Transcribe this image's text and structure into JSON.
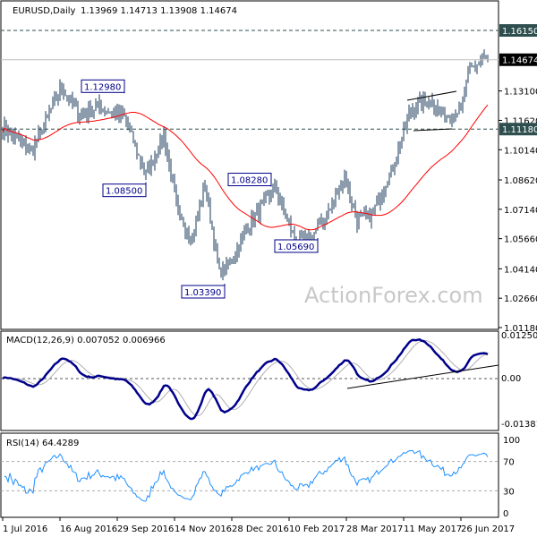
{
  "chart_data": {
    "type": "line",
    "title": "EURUSD,Daily",
    "ohlc_header": "1.13969 1.14713 1.13908 1.14674",
    "price_ticks": [
      "1.13100",
      "1.11620",
      "1.10140",
      "1.08620",
      "1.07140",
      "1.05660",
      "1.04140",
      "1.02660",
      "1.01180"
    ],
    "price_range": [
      1.0118,
      1.1615
    ],
    "current_price": "1.14674",
    "levels": [
      {
        "label": "1.16150",
        "value": 1.1615
      },
      {
        "label": "1.11180",
        "value": 1.1118
      }
    ],
    "annotations": [
      {
        "label": "1.12980",
        "bar": 68,
        "value": 1.1298
      },
      {
        "label": "1.08500",
        "bar": 80,
        "value": 1.085
      },
      {
        "label": "1.08280",
        "bar": 150,
        "value": 1.0828
      },
      {
        "label": "1.03390",
        "bar": 124,
        "value": 1.0339
      },
      {
        "label": "1.05690",
        "bar": 176,
        "value": 1.0569
      }
    ],
    "x_labels": [
      "1 Jul 2016",
      "16 Aug 2016",
      "29 Sep 2016",
      "14 Nov 2016",
      "28 Dec 2016",
      "10 Feb 2017",
      "28 Mar 2017",
      "11 May 2017",
      "26 Jun 2017"
    ],
    "bars_per_label": 32,
    "price_waypoints": [
      [
        0,
        1.113
      ],
      [
        16,
        1.1
      ],
      [
        33,
        1.133
      ],
      [
        43,
        1.118
      ],
      [
        53,
        1.123
      ],
      [
        68,
        1.118
      ],
      [
        80,
        1.088
      ],
      [
        90,
        1.109
      ],
      [
        98,
        1.068
      ],
      [
        106,
        1.057
      ],
      [
        113,
        1.084
      ],
      [
        121,
        1.039
      ],
      [
        128,
        1.046
      ],
      [
        138,
        1.064
      ],
      [
        152,
        1.082
      ],
      [
        163,
        1.057
      ],
      [
        170,
        1.055
      ],
      [
        183,
        1.071
      ],
      [
        191,
        1.088
      ],
      [
        198,
        1.066
      ],
      [
        206,
        1.068
      ],
      [
        218,
        1.093
      ],
      [
        228,
        1.122
      ],
      [
        238,
        1.1266
      ],
      [
        248,
        1.118
      ],
      [
        256,
        1.122
      ],
      [
        261,
        1.142
      ],
      [
        268,
        1.147
      ],
      [
        271,
        1.1467
      ]
    ],
    "ma_color": "#ff0000",
    "bar_color": "#1a3a5a",
    "macd": {
      "label": "MACD(12,26,9) 0.007052 0.006966",
      "ticks": [
        "0.012509",
        "0.00",
        "-0.013813"
      ],
      "range": [
        -0.013813,
        0.012509
      ]
    },
    "rsi": {
      "label": "RSI(14) 64.4289",
      "ticks": [
        "100",
        "70",
        "30",
        "0"
      ]
    },
    "watermark": "ActionForex.com"
  }
}
